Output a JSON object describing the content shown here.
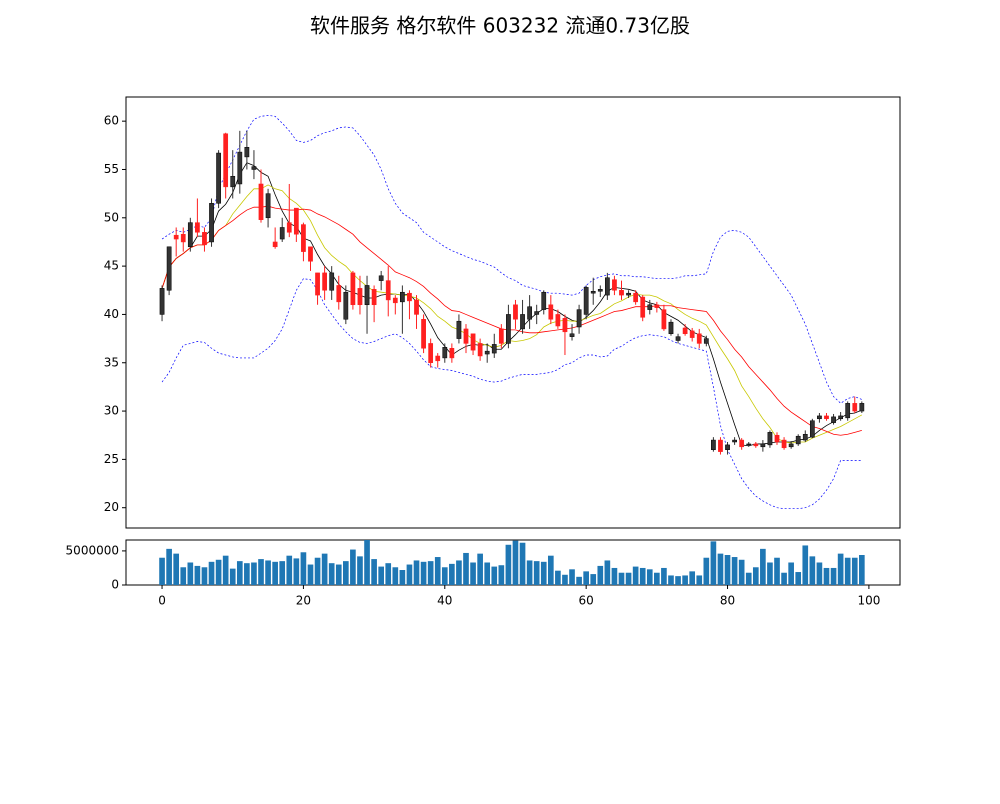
{
  "chart_data": [
    {
      "type": "candlestick",
      "title": "软件服务 格尔软件 603232 流通0.73亿股",
      "x": [
        0,
        1,
        2,
        3,
        4,
        5,
        6,
        7,
        8,
        9,
        10,
        11,
        12,
        13,
        14,
        15,
        16,
        17,
        18,
        19,
        20,
        21,
        22,
        23,
        24,
        25,
        26,
        27,
        28,
        29,
        30,
        31,
        32,
        33,
        34,
        35,
        36,
        37,
        38,
        39,
        40,
        41,
        42,
        43,
        44,
        45,
        46,
        47,
        48,
        49,
        50,
        51,
        52,
        53,
        54,
        55,
        56,
        57,
        58,
        59,
        60,
        61,
        62,
        63,
        64,
        65,
        66,
        67,
        68,
        69,
        70,
        71,
        72,
        73,
        74,
        75,
        76,
        77,
        78,
        79,
        80,
        81,
        82,
        83,
        84,
        85,
        86,
        87,
        88,
        89,
        90,
        91,
        92,
        93,
        94,
        95,
        96,
        97,
        98,
        99
      ],
      "open": [
        40,
        42.5,
        48.2,
        48.3,
        47,
        49.5,
        48.5,
        47.5,
        51.5,
        58.7,
        53.2,
        53.5,
        56.3,
        55,
        53.5,
        50,
        47.5,
        47.8,
        49.5,
        51,
        49.3,
        47,
        44.3,
        44.3,
        42.5,
        43,
        39.5,
        44.3,
        42.7,
        41,
        42.6,
        43.5,
        43.5,
        41.7,
        41.3,
        42.2,
        41.5,
        39.5,
        37,
        35.7,
        35.5,
        36.5,
        37.5,
        38.5,
        38,
        37,
        35.9,
        36,
        38.5,
        37,
        41,
        38.5,
        39.5,
        40,
        40.5,
        41,
        40,
        39.6,
        37.7,
        38.7,
        40,
        42.2,
        42.4,
        42,
        43.6,
        42.5,
        42,
        42.2,
        41.8,
        40.5,
        41,
        40.5,
        38,
        37.3,
        38.6,
        38.3,
        38,
        37,
        26,
        27,
        26,
        26.8,
        27,
        26.5,
        26.6,
        26.3,
        26.5,
        27.5,
        27,
        26.3,
        26.6,
        27,
        27.3,
        29.2,
        29.5,
        28.8,
        29.2,
        29.3,
        30.8,
        30
      ],
      "high": [
        43,
        47,
        49,
        49,
        50,
        52,
        49,
        52,
        57,
        58.8,
        57,
        59,
        59,
        57,
        55,
        53,
        49,
        50,
        53.5,
        51,
        49.5,
        47,
        44.3,
        45,
        45,
        44,
        43,
        44.5,
        44,
        44,
        43,
        44.5,
        45,
        42,
        43,
        42.5,
        42,
        40,
        37.5,
        36,
        37,
        37,
        40,
        39,
        38,
        37.5,
        37,
        38,
        39,
        41,
        41.5,
        41.5,
        42,
        41,
        42.5,
        42,
        40.5,
        40,
        39,
        41,
        43,
        43.8,
        43,
        44.3,
        44,
        43.5,
        42.5,
        42.5,
        42,
        41.5,
        41.3,
        41,
        39.5,
        38,
        39,
        38.6,
        38.5,
        37.8,
        27.3,
        27.3,
        26.8,
        27.3,
        27.2,
        26.8,
        26.8,
        27,
        28,
        27.8,
        27.3,
        26.9,
        27.6,
        28,
        29.2,
        29.8,
        29.8,
        29.7,
        29.9,
        31,
        31.5,
        31
      ],
      "low": [
        39.3,
        42,
        46,
        46.5,
        46.5,
        48,
        46.5,
        47,
        51,
        52,
        52,
        52.5,
        55,
        54,
        49.5,
        49,
        46.8,
        47.5,
        48,
        47.5,
        45.5,
        44.5,
        41,
        41.5,
        41.5,
        40.5,
        39,
        40.5,
        40,
        38,
        39.2,
        42.5,
        39.8,
        40,
        38,
        39.5,
        38.5,
        36,
        34.5,
        34.5,
        35,
        35,
        37,
        36,
        35.8,
        35.2,
        35,
        35.5,
        36.5,
        36.5,
        38.5,
        38,
        38.5,
        39,
        40,
        39,
        38.5,
        35.8,
        37.3,
        38,
        39.5,
        41,
        41.8,
        41.5,
        42,
        41.5,
        41.7,
        41,
        39.3,
        40,
        40.2,
        38.3,
        37.8,
        37,
        37.8,
        37.2,
        36.5,
        36.7,
        25.8,
        25.5,
        25.5,
        26.5,
        26,
        26.3,
        26.2,
        25.8,
        26.2,
        26.5,
        26,
        26.1,
        26.4,
        26.8,
        27.2,
        28.8,
        29,
        28.6,
        29,
        29,
        29.8,
        29.8
      ],
      "close": [
        42.7,
        47,
        47.8,
        47.5,
        49.5,
        48.5,
        47.2,
        51.5,
        56.7,
        53.2,
        54.3,
        56.8,
        57.3,
        55.3,
        49.8,
        52.5,
        47,
        49,
        48.5,
        48.3,
        46.5,
        45.5,
        42,
        42.5,
        44.3,
        41.3,
        42.3,
        41,
        41,
        43,
        41,
        44,
        41.5,
        41.2,
        42.3,
        41.4,
        40,
        36.5,
        35,
        35.2,
        36.6,
        35.5,
        39.3,
        37,
        36.3,
        35.7,
        36.2,
        36.9,
        37,
        40,
        39.5,
        40,
        40.8,
        40.3,
        42.3,
        39.5,
        38.8,
        38.2,
        38,
        40.5,
        42.8,
        42.4,
        42.6,
        43.8,
        42.5,
        42,
        42.2,
        41.3,
        39.7,
        41,
        40.7,
        38.5,
        39.2,
        37.7,
        38,
        37.6,
        37,
        37.5,
        27,
        25.8,
        26.5,
        27,
        26.3,
        26.6,
        26.4,
        26.6,
        27.8,
        26.8,
        26.2,
        26.6,
        27.4,
        27.6,
        29,
        29.5,
        29.2,
        29.4,
        29.5,
        30.8,
        30,
        30.8
      ],
      "up_color": "#333333",
      "down_color": "#ff2020",
      "lines": [
        {
          "color": "#000000",
          "dashed": false,
          "values": [
            42.7,
            44.9,
            45.8,
            46.3,
            46.9,
            48.1,
            48.1,
            48.8,
            50.7,
            51.4,
            52.6,
            54.5,
            55.7,
            55.4,
            54.7,
            54.3,
            52.4,
            50.7,
            49.4,
            49.1,
            47.9,
            47.6,
            46.2,
            45,
            44.2,
            43.1,
            42.5,
            42.3,
            42,
            41.7,
            41.7,
            42,
            42.1,
            42.1,
            42,
            42.1,
            41.3,
            40.3,
            39,
            37.6,
            36.7,
            35.8,
            36.3,
            36.7,
            36.9,
            36.8,
            36.9,
            36.4,
            36.4,
            37.2,
            37.9,
            38.7,
            39.5,
            40.1,
            40.6,
            40.6,
            40.3,
            39.8,
            39.4,
            39.2,
            39.7,
            40.4,
            41.3,
            42.4,
            42.8,
            42.7,
            42.6,
            42.4,
            41.5,
            41.2,
            41,
            40.2,
            39.8,
            39.4,
            38.8,
            38.2,
            37.9,
            37.6,
            35.4,
            33,
            30.8,
            28.6,
            26.5,
            26.4,
            26.6,
            26.6,
            26.7,
            26.8,
            26.8,
            26.8,
            27,
            27.1,
            27.4,
            28,
            28.5,
            28.9,
            29.3,
            29.7,
            29.8,
            30.1
          ]
        },
        {
          "color": "#c8c800",
          "dashed": false,
          "values": [
            42.7,
            44.9,
            45.8,
            46.3,
            46.9,
            47.2,
            47.2,
            47.7,
            48.7,
            49.2,
            50.4,
            51.3,
            52.2,
            53,
            53,
            53.4,
            53,
            52.8,
            52,
            51.5,
            50.8,
            49.7,
            48.2,
            46.9,
            46.1,
            45.5,
            45,
            44.2,
            43.5,
            42.9,
            42.4,
            42.3,
            42.2,
            42.1,
            42,
            41.9,
            41.7,
            41.2,
            40.6,
            39.8,
            39.3,
            38.7,
            38.4,
            38,
            37.4,
            37,
            36.8,
            36.6,
            36.8,
            37.3,
            37.2,
            37.3,
            37.5,
            37.9,
            38.7,
            39.1,
            39.3,
            39.4,
            39.3,
            39.3,
            39.6,
            39.9,
            40.1,
            40.6,
            41.1,
            41.4,
            41.8,
            42.1,
            42,
            42,
            41.8,
            41.4,
            41.1,
            40.5,
            40,
            39.6,
            39.3,
            38.9,
            37.7,
            36.5,
            35.4,
            34.2,
            32.6,
            31.5,
            30.3,
            29.2,
            28.3,
            27.2,
            26.8,
            26.7,
            26.8,
            26.8,
            27.2,
            27.5,
            27.8,
            28.1,
            28.4,
            28.8,
            29.2,
            29.6
          ]
        },
        {
          "color": "#ff0000",
          "dashed": false,
          "values": [
            42.7,
            44.9,
            45.8,
            46.3,
            46.9,
            47.2,
            47.2,
            47.7,
            48.7,
            49.2,
            49.7,
            50.3,
            50.8,
            51.1,
            51.1,
            51.2,
            51,
            50.9,
            50.8,
            50.8,
            50.9,
            50.8,
            50.4,
            50.1,
            49.7,
            49.3,
            48.8,
            48.3,
            47.5,
            46.9,
            46.3,
            45.7,
            45.1,
            44.4,
            44.1,
            43.8,
            43.4,
            42.9,
            42.2,
            41.6,
            40.9,
            40.4,
            40.3,
            40,
            39.7,
            39.4,
            39.1,
            38.8,
            38.5,
            38.4,
            38.4,
            38.2,
            38.1,
            38.1,
            38.2,
            38.3,
            38.4,
            38.5,
            38.6,
            38.8,
            39.1,
            39.4,
            39.7,
            40,
            40.3,
            40.4,
            40.6,
            40.8,
            40.8,
            40.8,
            40.9,
            40.9,
            40.9,
            40.7,
            40.6,
            40.5,
            40.4,
            40.3,
            39.4,
            38.3,
            37.4,
            36.4,
            35.6,
            34.6,
            33.8,
            33,
            32.2,
            31.3,
            30.5,
            29.9,
            29.4,
            28.9,
            28.4,
            28.2,
            27.9,
            27.6,
            27.5,
            27.6,
            27.8,
            28
          ]
        },
        {
          "color": "#0000ff",
          "dashed": true,
          "values": [
            47.8,
            48.3,
            48.7,
            48.5,
            48.8,
            49.2,
            49,
            50,
            53,
            54.5,
            56,
            57.5,
            59,
            60.2,
            60.5,
            60.6,
            60.5,
            59.8,
            59,
            58,
            57.8,
            58,
            58.5,
            58.8,
            59,
            59.3,
            59.4,
            59.3,
            58.5,
            57.5,
            56.5,
            55,
            53,
            51.5,
            50.5,
            50,
            49.5,
            48.5,
            48,
            47.5,
            47,
            46.6,
            46.3,
            46,
            45.7,
            45.5,
            45.2,
            44.9,
            44.3,
            43.8,
            43.5,
            43,
            42.8,
            42.6,
            42.3,
            42.2,
            42.2,
            42.1,
            42,
            42.2,
            43,
            43.6,
            43.9,
            44.1,
            44.2,
            44,
            44,
            43.9,
            43.9,
            43.8,
            43.7,
            43.7,
            43.7,
            43.8,
            44,
            44,
            44.1,
            44.2,
            46.5,
            48,
            48.6,
            48.7,
            48.5,
            48,
            47,
            46,
            45,
            44,
            43,
            42,
            40.5,
            39,
            37,
            35,
            33,
            31.5,
            30.8,
            31.3,
            31.5,
            31.2
          ]
        },
        {
          "color": "#0000ff",
          "dashed": true,
          "values": [
            33,
            34,
            35.5,
            36.8,
            37,
            37.2,
            37.1,
            36.5,
            36,
            35.8,
            35.6,
            35.5,
            35.5,
            35.5,
            36,
            36.5,
            37.3,
            38.5,
            40.5,
            42.5,
            43.7,
            43.6,
            42.5,
            41,
            40,
            39,
            38.2,
            37.5,
            37.1,
            37,
            37.2,
            37.5,
            37.8,
            38,
            37.6,
            37,
            36.2,
            35.3,
            34.6,
            34.4,
            34.3,
            34.2,
            34,
            33.8,
            33.6,
            33.3,
            33.1,
            33,
            33.1,
            33.4,
            33.6,
            33.8,
            33.8,
            33.8,
            33.9,
            34,
            34.3,
            34.8,
            35,
            35.5,
            35.8,
            35.8,
            35.6,
            35.7,
            36.4,
            36.7,
            37.2,
            37.6,
            37.8,
            37.9,
            37.8,
            37.7,
            37.3,
            37,
            36.8,
            36.6,
            36.4,
            36.2,
            32.5,
            28.5,
            26,
            24.5,
            23,
            22,
            21.2,
            20.7,
            20.3,
            20,
            19.9,
            19.9,
            19.9,
            20,
            20.3,
            20.9,
            21.8,
            23,
            24.9,
            24.9,
            24.9,
            24.9
          ]
        }
      ],
      "xlim": [
        -5.1,
        104.4
      ],
      "ylim": [
        17.9,
        62.5
      ],
      "yticks": [
        20,
        25,
        30,
        35,
        40,
        45,
        50,
        55,
        60
      ]
    },
    {
      "type": "bar",
      "color": "#1f77b4",
      "x": [
        0,
        1,
        2,
        3,
        4,
        5,
        6,
        7,
        8,
        9,
        10,
        11,
        12,
        13,
        14,
        15,
        16,
        17,
        18,
        19,
        20,
        21,
        22,
        23,
        24,
        25,
        26,
        27,
        28,
        29,
        30,
        31,
        32,
        33,
        34,
        35,
        36,
        37,
        38,
        39,
        40,
        41,
        42,
        43,
        44,
        45,
        46,
        47,
        48,
        49,
        50,
        51,
        52,
        53,
        54,
        55,
        56,
        57,
        58,
        59,
        60,
        61,
        62,
        63,
        64,
        65,
        66,
        67,
        68,
        69,
        70,
        71,
        72,
        73,
        74,
        75,
        76,
        77,
        78,
        79,
        80,
        81,
        82,
        83,
        84,
        85,
        86,
        87,
        88,
        89,
        90,
        91,
        92,
        93,
        94,
        95,
        96,
        97,
        98,
        99
      ],
      "values": [
        4000000,
        5300000,
        4600000,
        2600000,
        3300000,
        2800000,
        2600000,
        3400000,
        3700000,
        4300000,
        2400000,
        3500000,
        3200000,
        3300000,
        3800000,
        3600000,
        3400000,
        3500000,
        4300000,
        3900000,
        4800000,
        3000000,
        4000000,
        4600000,
        3200000,
        3000000,
        3500000,
        5200000,
        4200000,
        6600000,
        3800000,
        2700000,
        3200000,
        2600000,
        2200000,
        3000000,
        3600000,
        3400000,
        3500000,
        4100000,
        2600000,
        3100000,
        3600000,
        4700000,
        3300000,
        4600000,
        3300000,
        2700000,
        2900000,
        5900000,
        6500000,
        6200000,
        3600000,
        3500000,
        3400000,
        4300000,
        2100000,
        1500000,
        2300000,
        1200000,
        2000000,
        1600000,
        2800000,
        3600000,
        2500000,
        1800000,
        1800000,
        2700000,
        2500000,
        2300000,
        1800000,
        2500000,
        1400000,
        1300000,
        1400000,
        2000000,
        1400000,
        4000000,
        6400000,
        4600000,
        4400000,
        4100000,
        3700000,
        1800000,
        2600000,
        5300000,
        3300000,
        4000000,
        1800000,
        3300000,
        1900000,
        5800000,
        4200000,
        3300000,
        2500000,
        2500000,
        4600000,
        4000000,
        4000000,
        4400000
      ],
      "xlim": [
        -5.1,
        104.4
      ],
      "ylim": [
        0,
        6600000
      ],
      "yticks": [
        0,
        5000000
      ],
      "xticks": [
        0,
        20,
        40,
        60,
        80,
        100
      ]
    }
  ]
}
